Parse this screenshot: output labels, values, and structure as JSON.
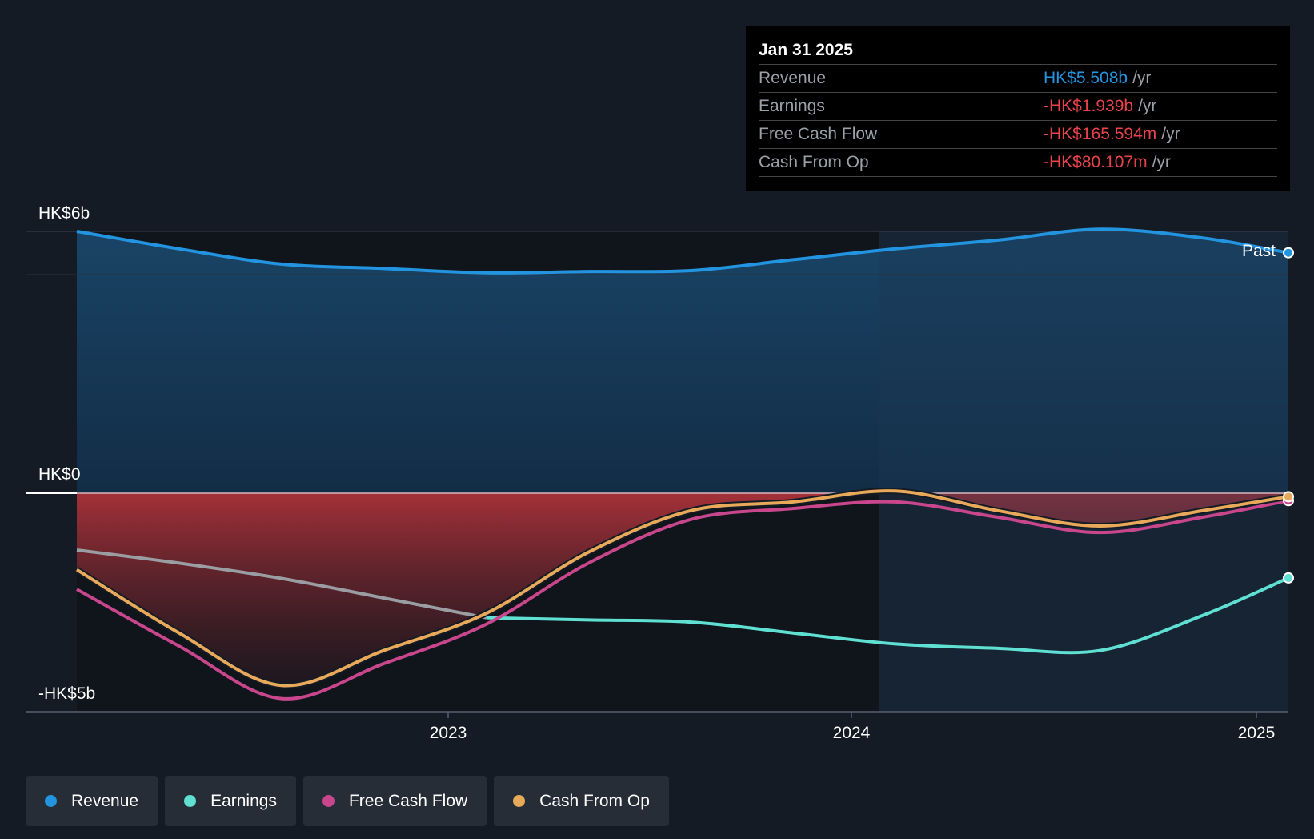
{
  "chart_data": {
    "type": "area",
    "y_axis": {
      "ticks": [
        {
          "label": "HK$6b",
          "value": 6
        },
        {
          "label": "HK$0",
          "value": 0
        },
        {
          "label": "-HK$5b",
          "value": -5
        }
      ],
      "ylim": [
        -5,
        6
      ],
      "unit": "HK$ billions"
    },
    "x_axis": {
      "ticks": [
        {
          "label": "2023",
          "value": 2023.0
        },
        {
          "label": "2024",
          "value": 2024.0
        },
        {
          "label": "2025",
          "value": 2025.0
        }
      ],
      "xlim": [
        2022.12,
        2025.08
      ]
    },
    "past_label": "Past",
    "series": [
      {
        "name": "Revenue",
        "color": "#2394e0",
        "x": [
          2022.12,
          2022.37,
          2022.62,
          2022.87,
          2023.12,
          2023.37,
          2023.62,
          2023.87,
          2024.12,
          2024.37,
          2024.62,
          2024.87,
          2025.08
        ],
        "values": [
          6.0,
          5.6,
          5.25,
          5.15,
          5.05,
          5.08,
          5.1,
          5.35,
          5.6,
          5.8,
          6.05,
          5.85,
          5.51
        ]
      },
      {
        "name": "Earnings",
        "color": "#5fe0d2",
        "x": [
          2022.12,
          2022.37,
          2022.62,
          2022.87,
          2023.12,
          2023.37,
          2023.62,
          2023.87,
          2024.12,
          2024.37,
          2024.62,
          2024.87,
          2025.08
        ],
        "values": [
          -1.3,
          -1.6,
          -1.95,
          -2.4,
          -2.85,
          -2.9,
          -2.95,
          -3.2,
          -3.45,
          -3.55,
          -3.6,
          -2.8,
          -1.94
        ]
      },
      {
        "name": "Free Cash Flow",
        "color": "#c8468c",
        "x": [
          2022.12,
          2022.37,
          2022.62,
          2022.87,
          2023.12,
          2023.37,
          2023.62,
          2023.87,
          2024.12,
          2024.37,
          2024.62,
          2024.87,
          2025.08
        ],
        "values": [
          -2.2,
          -3.5,
          -4.7,
          -3.9,
          -3.0,
          -1.6,
          -0.6,
          -0.35,
          -0.2,
          -0.55,
          -0.9,
          -0.55,
          -0.17
        ]
      },
      {
        "name": "Cash From Op",
        "color": "#e8a95a",
        "x": [
          2022.12,
          2022.37,
          2022.62,
          2022.87,
          2023.12,
          2023.37,
          2023.62,
          2023.87,
          2024.12,
          2024.37,
          2024.62,
          2024.87,
          2025.08
        ],
        "values": [
          -1.75,
          -3.2,
          -4.4,
          -3.6,
          -2.75,
          -1.35,
          -0.4,
          -0.2,
          0.05,
          -0.4,
          -0.75,
          -0.4,
          -0.08
        ]
      }
    ]
  },
  "tooltip": {
    "date": "Jan 31 2025",
    "rows": [
      {
        "label": "Revenue",
        "value": "HK$5.508b",
        "suffix": "/yr",
        "color": "#2394e0"
      },
      {
        "label": "Earnings",
        "value": "-HK$1.939b",
        "suffix": "/yr",
        "color": "#e8434b"
      },
      {
        "label": "Free Cash Flow",
        "value": "-HK$165.594m",
        "suffix": "/yr",
        "color": "#e8434b"
      },
      {
        "label": "Cash From Op",
        "value": "-HK$80.107m",
        "suffix": "/yr",
        "color": "#e8434b"
      }
    ]
  },
  "legend": [
    {
      "label": "Revenue",
      "color": "#2394e0"
    },
    {
      "label": "Earnings",
      "color": "#5fe0d2"
    },
    {
      "label": "Free Cash Flow",
      "color": "#c8468c"
    },
    {
      "label": "Cash From Op",
      "color": "#e8a95a"
    }
  ]
}
